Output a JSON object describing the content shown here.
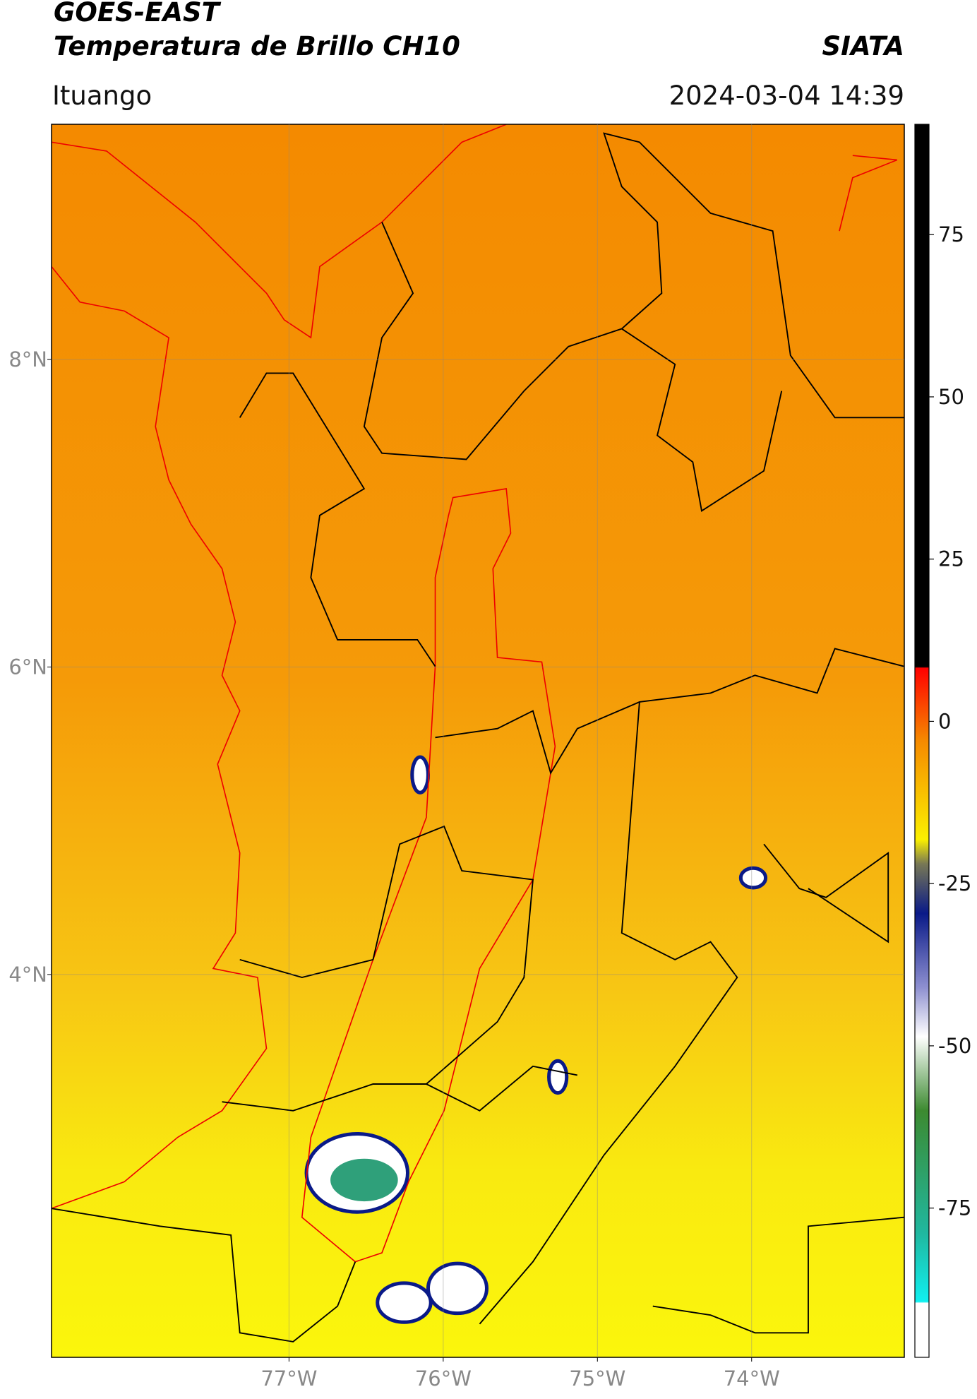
{
  "chart_data": {
    "type": "map",
    "title": "GOES-EAST",
    "subtitle": "Temperatura de Brillo CH10",
    "source": "SIATA",
    "location": "Ituango",
    "timestamp": "2024-03-04 14:39",
    "xlim": [
      -78.54,
      -73.01
    ],
    "ylim": [
      1.51,
      9.53
    ],
    "xticks": [
      {
        "value": -77,
        "label": "77°W"
      },
      {
        "value": -76,
        "label": "76°W"
      },
      {
        "value": -75,
        "label": "75°W"
      },
      {
        "value": -74,
        "label": "74°W"
      }
    ],
    "yticks": [
      {
        "value": 8,
        "label": "8°N"
      },
      {
        "value": 6,
        "label": "6°N"
      },
      {
        "value": 4,
        "label": "4°N"
      }
    ],
    "grid": true,
    "colorbar": {
      "clim": [
        -98,
        92
      ],
      "ticks": [
        75,
        50,
        25,
        0,
        -25,
        -50,
        -75
      ]
    }
  }
}
